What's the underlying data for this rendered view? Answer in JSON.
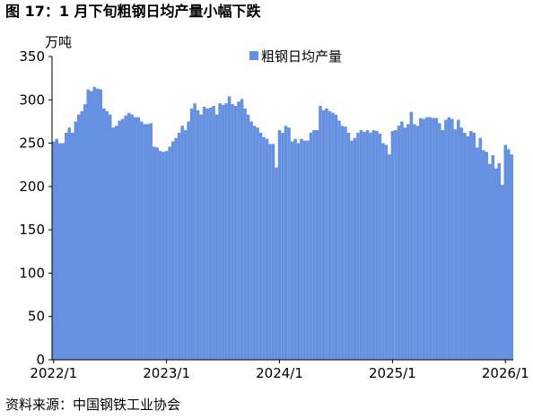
{
  "chart_data": {
    "type": "bar",
    "title": "图 17：1 月下旬粗钢日均产量小幅下跌",
    "y_label": "万吨",
    "source": "资料来源：中国钢铁工业协会",
    "categories": [
      "2022/1",
      null,
      null,
      null,
      null,
      null,
      null,
      null,
      null,
      null,
      null,
      null,
      null,
      null,
      null,
      null,
      null,
      null,
      null,
      null,
      null,
      null,
      null,
      null,
      null,
      null,
      null,
      null,
      null,
      null,
      null,
      null,
      null,
      null,
      null,
      null,
      "2023/1",
      null,
      null,
      null,
      null,
      null,
      null,
      null,
      null,
      null,
      null,
      null,
      null,
      null,
      null,
      null,
      null,
      null,
      null,
      null,
      null,
      null,
      null,
      null,
      null,
      null,
      null,
      null,
      null,
      null,
      null,
      null,
      null,
      null,
      null,
      null,
      "2024/1",
      null,
      null,
      null,
      null,
      null,
      null,
      null,
      null,
      null,
      null,
      null,
      null,
      null,
      null,
      null,
      null,
      null,
      null,
      null,
      null,
      null,
      null,
      null,
      null,
      null,
      null,
      null,
      null,
      null,
      null,
      null,
      null,
      null,
      null,
      null,
      "2025/1",
      null,
      null,
      null,
      null,
      null,
      null,
      null,
      null,
      null,
      null,
      null,
      null,
      null,
      null,
      null,
      null,
      null,
      null,
      null,
      null,
      null,
      null,
      null,
      null,
      null,
      null,
      null,
      null,
      null,
      null,
      null,
      null,
      null,
      null,
      null,
      "2026/1",
      null,
      null
    ],
    "series": [
      {
        "name": "粗钢日均产量",
        "color": "#6690e0",
        "values": [
          252,
          255,
          250,
          250,
          262,
          268,
          262,
          275,
          283,
          287,
          295,
          312,
          310,
          315,
          313,
          312,
          290,
          287,
          283,
          268,
          270,
          276,
          278,
          282,
          285,
          283,
          280,
          280,
          275,
          272,
          272,
          273,
          246,
          245,
          241,
          240,
          241,
          246,
          252,
          256,
          262,
          270,
          265,
          275,
          290,
          296,
          288,
          283,
          292,
          290,
          291,
          293,
          283,
          296,
          294,
          296,
          304,
          295,
          293,
          298,
          301,
          290,
          283,
          275,
          270,
          268,
          262,
          257,
          255,
          249,
          249,
          222,
          265,
          262,
          270,
          268,
          252,
          255,
          250,
          255,
          253,
          253,
          262,
          265,
          265,
          293,
          288,
          290,
          287,
          285,
          283,
          276,
          270,
          269,
          262,
          253,
          256,
          262,
          265,
          263,
          265,
          262,
          265,
          264,
          261,
          250,
          248,
          237,
          264,
          265,
          270,
          275,
          268,
          272,
          286,
          272,
          270,
          279,
          278,
          280,
          280,
          279,
          279,
          273,
          265,
          277,
          280,
          278,
          266,
          277,
          268,
          262,
          258,
          264,
          262,
          245,
          256,
          242,
          240,
          226,
          236,
          221,
          227,
          202,
          248,
          243,
          237
        ]
      }
    ],
    "ylim": [
      0,
      350
    ],
    "yticks": [
      0,
      50,
      100,
      150,
      200,
      250,
      300,
      350
    ]
  }
}
